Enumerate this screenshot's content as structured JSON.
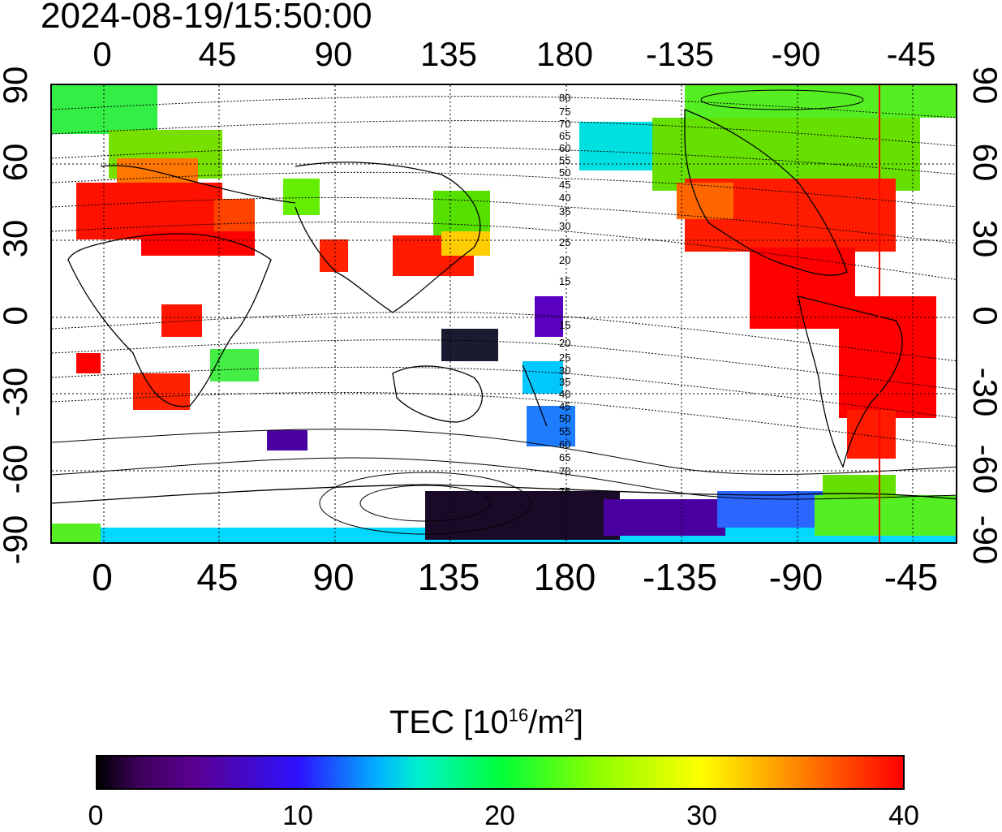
{
  "title": "2024-08-19/15:50:00",
  "lon_ticks": [
    "0",
    "45",
    "90",
    "135",
    "180",
    "-135",
    "-90",
    "-45"
  ],
  "lat_ticks": [
    "90",
    "60",
    "30",
    "0",
    "-30",
    "-60",
    "-90"
  ],
  "contour_labels_north": [
    "80",
    "75",
    "70",
    "65",
    "60",
    "55",
    "50",
    "45",
    "40",
    "35",
    "30",
    "25",
    "20",
    "15"
  ],
  "contour_labels_south": [
    "15",
    "20",
    "25",
    "30",
    "35",
    "40",
    "45",
    "50",
    "55",
    "60",
    "65",
    "70",
    "75"
  ],
  "colorbar": {
    "title": "TEC  [10",
    "title_exp": "16",
    "title_unit": "/m",
    "title_unit_exp": "2",
    "title_close": "]",
    "ticks": [
      "0",
      "10",
      "20",
      "30",
      "40"
    ],
    "colors": [
      "#000000",
      "#5a0090",
      "#2d12ff",
      "#00f2cc",
      "#00ff3a",
      "#ffff00",
      "#ff9900",
      "#ff0000"
    ]
  },
  "terminator_color": "#ff0000"
}
